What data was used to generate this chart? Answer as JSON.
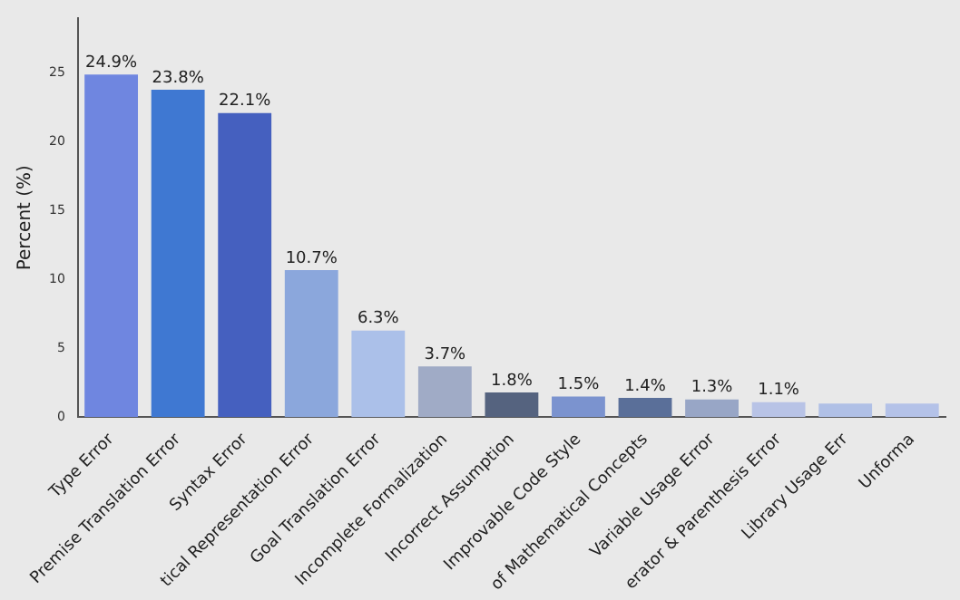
{
  "chart_data": {
    "type": "bar",
    "ylabel": "Percent (%)",
    "categories": [
      "Type Error",
      "Premise Translation Error",
      "Syntax Error",
      "tical Representation Error",
      "Goal Translation Error",
      "Incomplete Formalization",
      "Incorrect Assumption",
      "Improvable Code Style",
      "of Mathematical Concepts",
      "Variable Usage Error",
      "erator & Parenthesis Error",
      "Library Usage Err",
      "Unforma"
    ],
    "values": [
      24.9,
      23.8,
      22.1,
      10.7,
      6.3,
      3.7,
      1.8,
      1.5,
      1.4,
      1.3,
      1.1,
      1.0,
      1.0
    ],
    "value_labels": [
      "24.9%",
      "23.8%",
      "22.1%",
      "10.7%",
      "6.3%",
      "3.7%",
      "1.8%",
      "1.5%",
      "1.4%",
      "1.3%",
      "1.1%",
      null,
      null
    ],
    "colors": [
      "#6f86e0",
      "#3f78d2",
      "#4560bf",
      "#8ba7dc",
      "#abc0e9",
      "#a0abc6",
      "#55637f",
      "#7b93cf",
      "#5a6f99",
      "#98a6c6",
      "#b8c3e6",
      "#b0c0e6",
      "#b4c2e8"
    ],
    "ylim": [
      0,
      29
    ],
    "yticks": [
      0,
      5,
      10,
      15,
      20,
      25
    ],
    "grid": false,
    "legend": false
  }
}
